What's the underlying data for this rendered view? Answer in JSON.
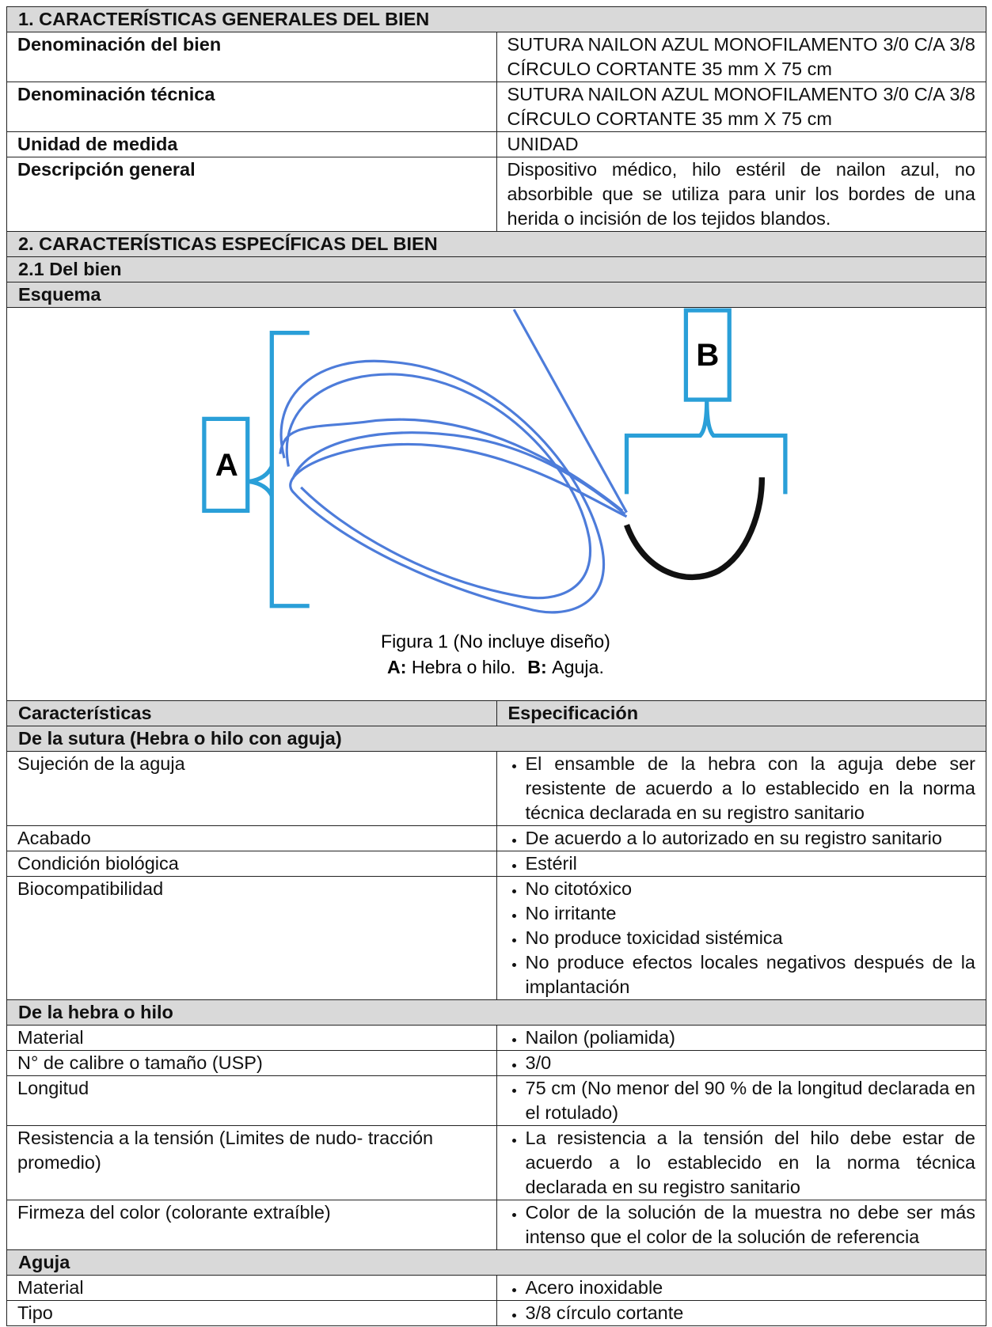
{
  "section1": {
    "title": "1. CARACTERÍSTICAS GENERALES DEL BIEN",
    "rows": [
      [
        "Denominación del bien",
        "SUTURA NAILON AZUL MONOFILAMENTO 3/0 C/A 3/8 CÍRCULO CORTANTE 35 mm X 75 cm"
      ],
      [
        "Denominación técnica",
        "SUTURA NAILON AZUL MONOFILAMENTO 3/0 C/A 3/8 CÍRCULO CORTANTE 35 mm X 75 cm"
      ],
      [
        "Unidad de medida",
        "UNIDAD"
      ],
      [
        "Descripción general",
        "Dispositivo médico, hilo estéril de nailon azul, no absorbible que se utiliza para unir los bordes de una herida o incisión de los tejidos blandos."
      ]
    ]
  },
  "section2": {
    "title": "2. CARACTERÍSTICAS ESPECÍFICAS DEL BIEN",
    "subtitle": "2.1 Del bien",
    "schema_label": "Esquema",
    "figure": {
      "label_a": "A",
      "label_b": "B",
      "caption": "Figura 1 (No incluye diseño)",
      "legend_a_key": "A:",
      "legend_a": "Hebra o hilo.",
      "legend_b_key": "B:",
      "legend_b": "Aguja."
    }
  },
  "spec_table": {
    "headers": [
      "Características",
      "Especificación"
    ],
    "groups": [
      {
        "title": "De la sutura (Hebra o hilo con aguja)",
        "rows": [
          {
            "name": "Sujeción de la aguja",
            "items": [
              "El ensamble de la hebra con la aguja debe ser resistente de acuerdo a lo establecido en la norma técnica declarada en su registro sanitario"
            ]
          },
          {
            "name": "Acabado",
            "items": [
              "De acuerdo a lo autorizado en su registro sanitario"
            ]
          },
          {
            "name": "Condición biológica",
            "items": [
              "Estéril"
            ]
          },
          {
            "name": "Biocompatibilidad",
            "items": [
              "No citotóxico",
              "No irritante",
              "No produce toxicidad sistémica",
              "No produce efectos locales negativos después de la implantación"
            ]
          }
        ]
      },
      {
        "title": "De la hebra o hilo",
        "rows": [
          {
            "name": "Material",
            "items": [
              "Nailon (poliamida)"
            ]
          },
          {
            "name": "N° de calibre o tamaño (USP)",
            "items": [
              "3/0"
            ]
          },
          {
            "name": "Longitud",
            "items": [
              "75 cm (No menor del 90 % de la longitud declarada en el rotulado)"
            ]
          },
          {
            "name": "Resistencia a la tensión (Limites de nudo- tracción promedio)",
            "items": [
              "La resistencia a la tensión del hilo debe estar de acuerdo a lo establecido en la norma técnica declarada en su registro sanitario"
            ]
          },
          {
            "name": "Firmeza del color (colorante extraíble)",
            "items": [
              "Color de la solución de la muestra no debe ser más intenso que el color de la solución de referencia"
            ]
          }
        ]
      },
      {
        "title": "Aguja",
        "rows": [
          {
            "name": "Material",
            "items": [
              "Acero inoxidable"
            ]
          },
          {
            "name": "Tipo",
            "items": [
              "3/8 círculo cortante"
            ]
          }
        ]
      }
    ]
  }
}
